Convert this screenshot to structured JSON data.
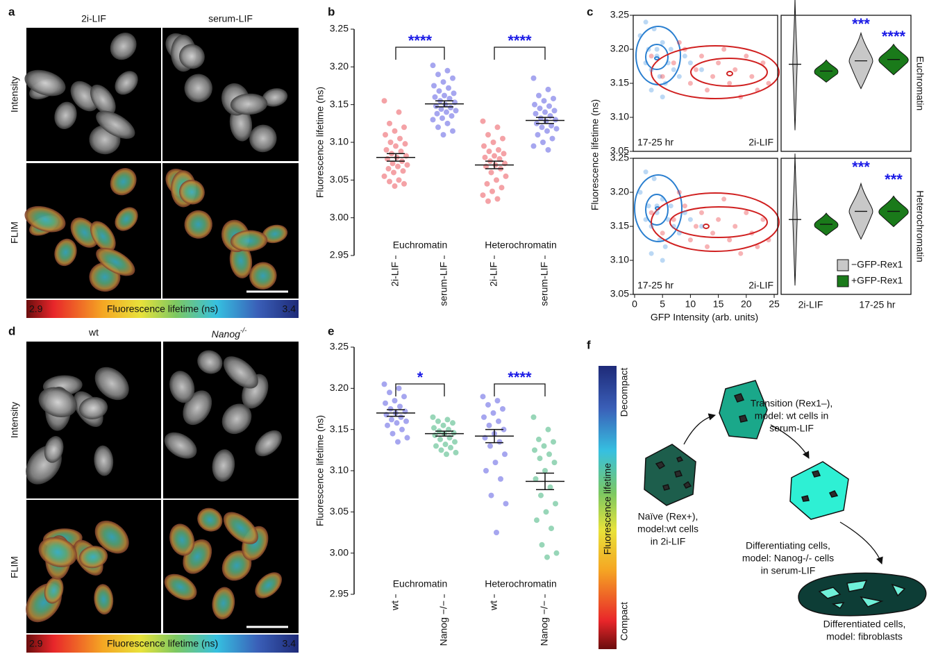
{
  "panel_labels": [
    "a",
    "b",
    "c",
    "d",
    "e",
    "f"
  ],
  "panel_a": {
    "columns": [
      "2i-LIF",
      "serum-LIF"
    ],
    "column_colors": [
      "#e8262a",
      "#3b8fe0"
    ],
    "rows": [
      "Intensity",
      "FLIM"
    ],
    "colorbar": {
      "min": "2.9",
      "label": "Fluorescence lifetime (ns)",
      "max": "3.4"
    }
  },
  "panel_d": {
    "columns": [
      "wt",
      "Nanog"
    ],
    "column_superscripts": [
      null,
      "-/-"
    ],
    "column_colors": [
      "#3b8fe0",
      "#1a9a4a"
    ],
    "rows": [
      "Intensity",
      "FLIM"
    ],
    "colorbar": {
      "min": "2.9",
      "label": "Fluorescence lifetime (ns)",
      "max": "3.4"
    }
  },
  "panel_f": {
    "axis": {
      "top": "Decompact",
      "middle": "Fluorescence   lifetime",
      "bottom": "Compact"
    },
    "states": [
      {
        "lines": [
          "Naïve (Rex+),",
          "model:wt cells",
          "in 2i-LIF"
        ]
      },
      {
        "lines": [
          "Transition (Rex1–),",
          "model: wt cells in",
          "serum-LIF"
        ]
      },
      {
        "lines": [
          "Differentiating cells,",
          "model: Nanog-/- cells",
          "in serum-LIF"
        ]
      },
      {
        "lines": [
          "Differentiated cells,",
          "model: fibroblasts"
        ]
      }
    ]
  },
  "chart_data": [
    {
      "type": "dot",
      "ylabel": "Fluorescence lifetime (ns)",
      "ylim": [
        2.95,
        3.25
      ],
      "yticks": [
        2.95,
        {
          "value": 3,
          "label": "3.00"
        },
        3.05,
        {
          "value": 3.1,
          "label": "3.10"
        },
        3.15,
        {
          "value": 3.2,
          "label": "3.20"
        },
        3.25
      ],
      "groups": [
        "Euchromatin",
        "Heterochromatin"
      ],
      "significance": [
        "****",
        "****"
      ],
      "categories": [
        "2i-LIF",
        "serum-LIF",
        "2i-LIF",
        "serum-LIF"
      ],
      "category_colors": [
        "#e8262a",
        "#3b8fe0",
        "#e8262a",
        "#3b8fe0"
      ],
      "point_colors": [
        "#f07a80",
        "#8080e8",
        "#f07a80",
        "#8080e8"
      ],
      "values": [
        3.08,
        3.151,
        3.07,
        3.129
      ],
      "errors": [
        0.005,
        0.004,
        0.005,
        0.004
      ],
      "points": [
        [
          3.155,
          3.14,
          3.125,
          3.12,
          3.115,
          3.11,
          3.105,
          3.1,
          3.098,
          3.095,
          3.09,
          3.088,
          3.085,
          3.082,
          3.08,
          3.078,
          3.075,
          3.072,
          3.07,
          3.068,
          3.065,
          3.062,
          3.06,
          3.055,
          3.05,
          3.048,
          3.045,
          3.042
        ],
        [
          3.202,
          3.195,
          3.19,
          3.185,
          3.18,
          3.175,
          3.172,
          3.168,
          3.165,
          3.162,
          3.16,
          3.158,
          3.155,
          3.153,
          3.15,
          3.148,
          3.146,
          3.144,
          3.142,
          3.14,
          3.138,
          3.135,
          3.132,
          3.13,
          3.125,
          3.12,
          3.115,
          3.11
        ],
        [
          3.128,
          3.12,
          3.11,
          3.105,
          3.1,
          3.095,
          3.09,
          3.088,
          3.085,
          3.082,
          3.08,
          3.078,
          3.075,
          3.072,
          3.07,
          3.068,
          3.065,
          3.06,
          3.055,
          3.05,
          3.045,
          3.04,
          3.035,
          3.03,
          3.025,
          3.022
        ],
        [
          3.185,
          3.17,
          3.162,
          3.158,
          3.155,
          3.15,
          3.148,
          3.145,
          3.142,
          3.14,
          3.138,
          3.135,
          3.132,
          3.13,
          3.128,
          3.125,
          3.122,
          3.12,
          3.118,
          3.115,
          3.11,
          3.105,
          3.1,
          3.095,
          3.09
        ]
      ]
    },
    {
      "type": "dot",
      "ylabel": "Fluorescence lifetime (ns)",
      "ylim": [
        2.95,
        3.25
      ],
      "yticks": [
        2.95,
        {
          "value": 3,
          "label": "3.00"
        },
        3.05,
        {
          "value": 3.1,
          "label": "3.10"
        },
        3.15,
        {
          "value": 3.2,
          "label": "3.20"
        },
        3.25
      ],
      "groups": [
        "Euchromatin",
        "Heterochromatin"
      ],
      "significance": [
        "*",
        "****"
      ],
      "categories": [
        "wt",
        "Nanog −/−",
        "wt",
        "Nanog −/−"
      ],
      "category_colors": [
        "#3b8fe0",
        "#1a9a4a",
        "#3b8fe0",
        "#1a9a4a"
      ],
      "point_colors": [
        "#8080e8",
        "#6cc49a",
        "#8080e8",
        "#6cc49a"
      ],
      "values": [
        3.17,
        3.145,
        3.142,
        3.087
      ],
      "errors": [
        0.004,
        0.003,
        0.008,
        0.01
      ],
      "points": [
        [
          3.205,
          3.2,
          3.195,
          3.19,
          3.185,
          3.182,
          3.178,
          3.175,
          3.172,
          3.17,
          3.168,
          3.165,
          3.162,
          3.16,
          3.158,
          3.155,
          3.15,
          3.145,
          3.14,
          3.135
        ],
        [
          3.165,
          3.162,
          3.16,
          3.158,
          3.155,
          3.152,
          3.15,
          3.148,
          3.146,
          3.145,
          3.143,
          3.14,
          3.138,
          3.135,
          3.132,
          3.13,
          3.128,
          3.125,
          3.122,
          3.12
        ],
        [
          3.19,
          3.185,
          3.18,
          3.175,
          3.17,
          3.165,
          3.16,
          3.155,
          3.15,
          3.145,
          3.14,
          3.135,
          3.13,
          3.12,
          3.11,
          3.1,
          3.09,
          3.07,
          3.06,
          3.025
        ],
        [
          3.165,
          3.15,
          3.138,
          3.135,
          3.13,
          3.125,
          3.12,
          3.115,
          3.11,
          3.1,
          3.09,
          3.08,
          3.07,
          3.06,
          3.05,
          3.04,
          3.03,
          3.01,
          3.0,
          2.995
        ]
      ]
    },
    {
      "type": "scatter",
      "ylabel": "Fluorescence lifetime (ns)",
      "xlim": [
        0,
        25
      ],
      "ylim": [
        3.05,
        3.25
      ],
      "yticks": [
        3.05,
        {
          "value": 3.1,
          "label": "3.10"
        },
        3.15,
        {
          "value": 3.2,
          "label": "3.20"
        },
        3.25
      ],
      "series": [
        {
          "name": "17-25 hr",
          "color": "#3b8fe0",
          "x": [
            1,
            2,
            2.5,
            3,
            3.5,
            4,
            4.5,
            5,
            5.5,
            6,
            6.5,
            7,
            8,
            9,
            2,
            3,
            4,
            5,
            10,
            12
          ],
          "values": [
            3.22,
            3.18,
            3.2,
            3.17,
            3.23,
            3.19,
            3.16,
            3.21,
            3.15,
            3.18,
            3.2,
            3.17,
            3.16,
            3.19,
            3.24,
            3.14,
            3.2,
            3.13,
            3.18,
            3.17
          ]
        },
        {
          "name": "2i-LIF",
          "color": "#e8262a",
          "x": [
            3,
            5,
            7,
            9,
            10,
            11,
            12,
            13,
            14,
            15,
            16,
            17,
            18,
            19,
            20,
            21,
            22,
            23,
            24,
            8
          ],
          "values": [
            3.19,
            3.16,
            3.18,
            3.2,
            3.15,
            3.17,
            3.19,
            3.14,
            3.16,
            3.18,
            3.2,
            3.15,
            3.17,
            3.13,
            3.19,
            3.16,
            3.14,
            3.18,
            3.15,
            3.21
          ]
        }
      ]
    },
    {
      "type": "scatter",
      "xlabel": "GFP Intensity (arb. units)",
      "xlim": [
        0,
        25
      ],
      "xticks": [
        0,
        5,
        10,
        15,
        20,
        25
      ],
      "ylim": [
        3.05,
        3.25
      ],
      "yticks": [
        3.05,
        {
          "value": 3.1,
          "label": "3.10"
        },
        3.15,
        {
          "value": 3.2,
          "label": "3.20"
        },
        3.25
      ],
      "series": [
        {
          "name": "17-25 hr",
          "color": "#3b8fe0",
          "x": [
            1,
            2,
            2.5,
            3,
            3.5,
            4,
            4.5,
            5,
            5.5,
            6,
            6.5,
            7,
            8,
            9,
            2,
            3,
            4,
            5,
            10,
            12
          ],
          "values": [
            3.2,
            3.16,
            3.18,
            3.15,
            3.22,
            3.17,
            3.13,
            3.19,
            3.12,
            3.16,
            3.18,
            3.15,
            3.14,
            3.17,
            3.23,
            3.11,
            3.18,
            3.1,
            3.16,
            3.15
          ]
        },
        {
          "name": "2i-LIF",
          "color": "#e8262a",
          "x": [
            3,
            5,
            7,
            9,
            10,
            11,
            12,
            13,
            14,
            15,
            16,
            17,
            18,
            19,
            20,
            21,
            22,
            23,
            24,
            8
          ],
          "values": [
            3.17,
            3.14,
            3.16,
            3.18,
            3.13,
            3.15,
            3.17,
            3.12,
            3.14,
            3.16,
            3.19,
            3.13,
            3.15,
            3.11,
            3.17,
            3.14,
            3.12,
            3.16,
            3.13,
            3.2
          ]
        }
      ]
    },
    {
      "type": "violin",
      "side_label": "Euchromatin",
      "ylim": [
        3.05,
        3.25
      ],
      "stars": [
        "***",
        "****"
      ],
      "series": [
        {
          "color": "#c8c8c8",
          "values": [
            3.178,
            3.183
          ]
        },
        {
          "color": "#1a7a1a",
          "values": [
            3.168,
            3.185
          ]
        }
      ]
    },
    {
      "type": "violin",
      "side_label": "Heterochromatin",
      "ylim": [
        3.05,
        3.25
      ],
      "stars": [
        "***",
        "***"
      ],
      "categories": [
        "2i-LIF",
        "17-25 hr"
      ],
      "category_colors": [
        "#e8262a",
        "#3b8fe0"
      ],
      "legend": "lower-right",
      "series": [
        {
          "name": "−GFP-Rex1",
          "color": "#c8c8c8",
          "values": [
            3.16,
            3.172
          ]
        },
        {
          "name": "+GFP-Rex1",
          "color": "#1a7a1a",
          "values": [
            3.153,
            3.172
          ]
        }
      ]
    }
  ]
}
